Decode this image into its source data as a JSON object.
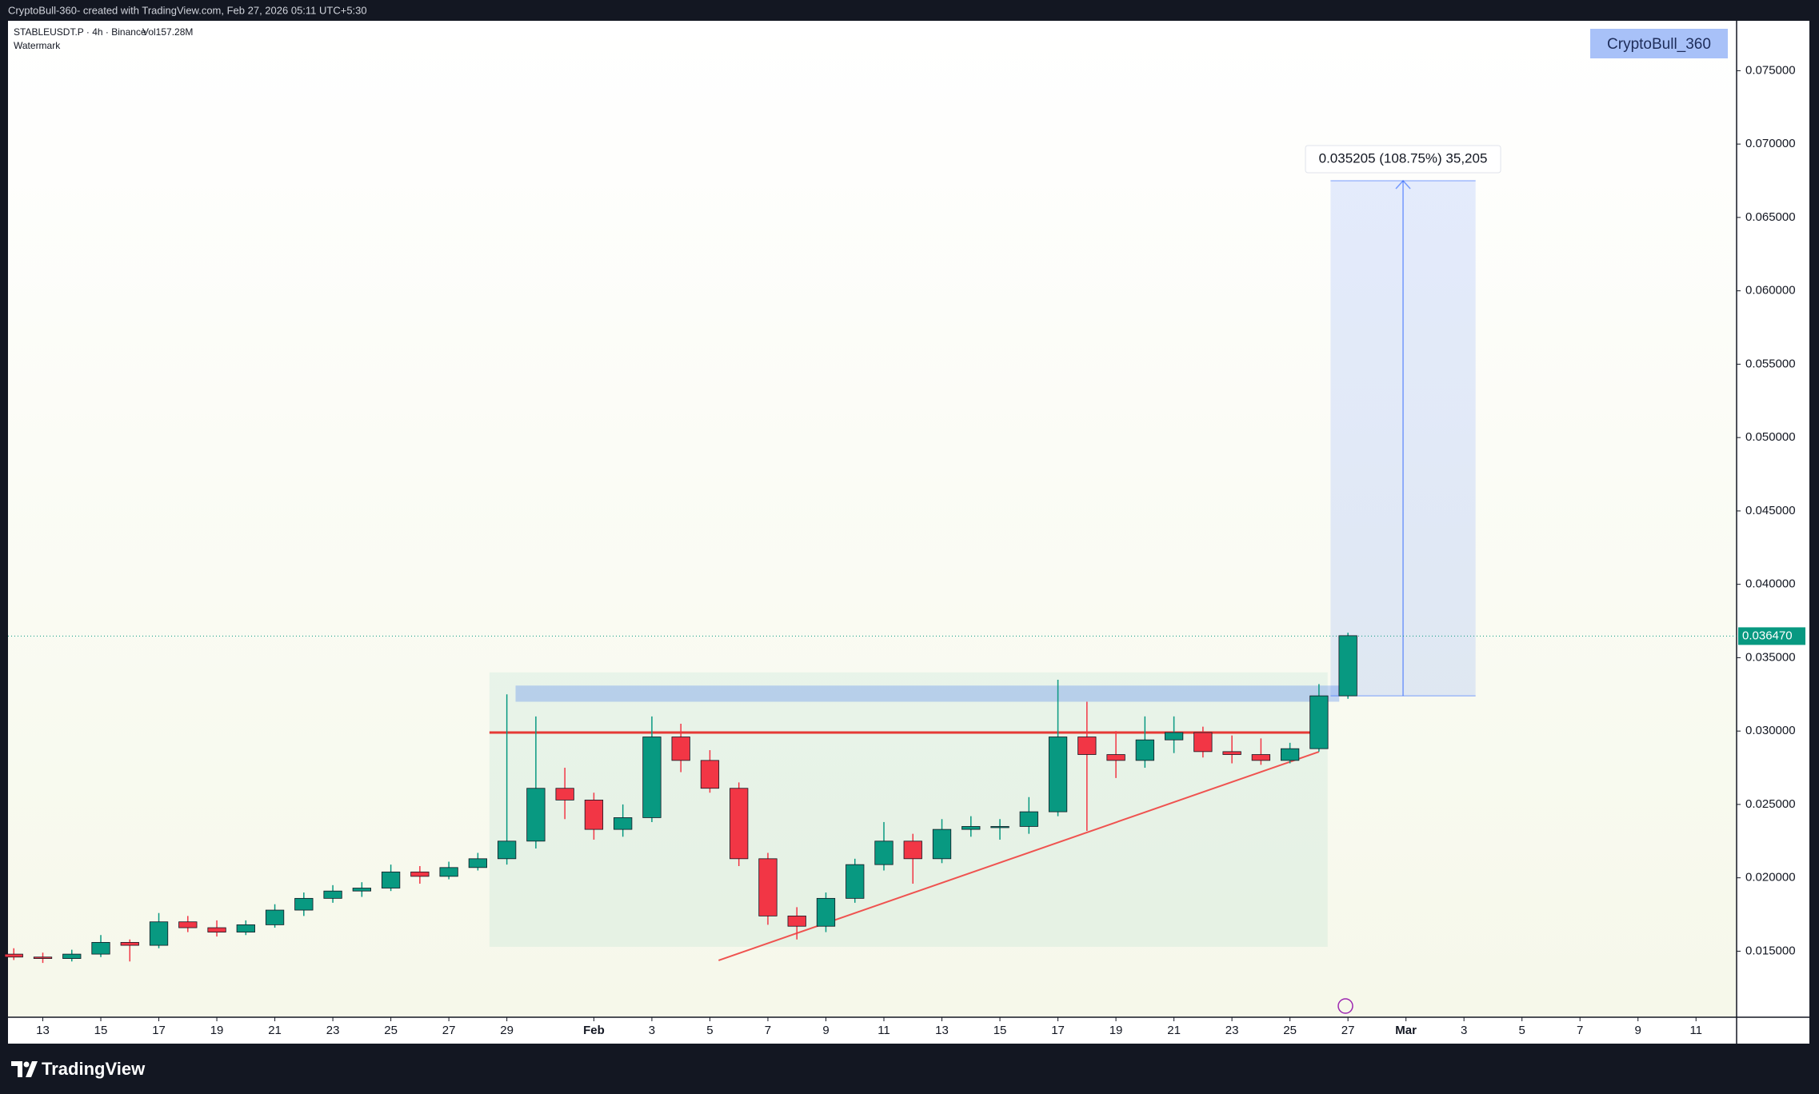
{
  "header": {
    "text": "CryptoBull-360- created with TradingView.com, Feb 27, 2026 05:11 UTC+5:30"
  },
  "legend": {
    "symbol": "STABLEUSDT.P · 4h · Binance",
    "volume": "Vol157.28M",
    "indicator": "Watermark"
  },
  "badge": "CryptoBull_360",
  "footer": {
    "brand": "TradingView"
  },
  "chart_data": {
    "type": "candlestick",
    "up_color": "#089981",
    "down_color": "#f23645",
    "xlim": [
      -1.2,
      58.4
    ],
    "ylim": [
      0.0105,
      0.0784
    ],
    "xticks": [
      {
        "value": 0,
        "label": "13"
      },
      {
        "value": 2,
        "label": "15"
      },
      {
        "value": 4,
        "label": "17"
      },
      {
        "value": 6,
        "label": "19"
      },
      {
        "value": 8,
        "label": "21"
      },
      {
        "value": 10,
        "label": "23"
      },
      {
        "value": 12,
        "label": "25"
      },
      {
        "value": 14,
        "label": "27"
      },
      {
        "value": 16,
        "label": "29"
      },
      {
        "value": 19,
        "label": "Feb"
      },
      {
        "value": 21,
        "label": "3"
      },
      {
        "value": 23,
        "label": "5"
      },
      {
        "value": 25,
        "label": "7"
      },
      {
        "value": 27,
        "label": "9"
      },
      {
        "value": 29,
        "label": "11"
      },
      {
        "value": 31,
        "label": "13"
      },
      {
        "value": 33,
        "label": "15"
      },
      {
        "value": 35,
        "label": "17"
      },
      {
        "value": 37,
        "label": "19"
      },
      {
        "value": 39,
        "label": "21"
      },
      {
        "value": 41,
        "label": "23"
      },
      {
        "value": 43,
        "label": "25"
      },
      {
        "value": 45,
        "label": "27"
      },
      {
        "value": 47,
        "label": "Mar"
      },
      {
        "value": 49,
        "label": "3"
      },
      {
        "value": 51,
        "label": "5"
      },
      {
        "value": 53,
        "label": "7"
      },
      {
        "value": 55,
        "label": "9"
      },
      {
        "value": 57,
        "label": "11"
      }
    ],
    "yticks": [
      {
        "value": 0.015,
        "label": "0.015000"
      },
      {
        "value": 0.02,
        "label": "0.020000"
      },
      {
        "value": 0.025,
        "label": "0.025000"
      },
      {
        "value": 0.03,
        "label": "0.030000"
      },
      {
        "value": 0.035,
        "label": "0.035000"
      },
      {
        "value": 0.04,
        "label": "0.040000"
      },
      {
        "value": 0.045,
        "label": "0.045000"
      },
      {
        "value": 0.05,
        "label": "0.050000"
      },
      {
        "value": 0.055,
        "label": "0.055000"
      },
      {
        "value": 0.06,
        "label": "0.060000"
      },
      {
        "value": 0.065,
        "label": "0.065000"
      },
      {
        "value": 0.07,
        "label": "0.070000"
      },
      {
        "value": 0.075,
        "label": "0.075000"
      }
    ],
    "x": [
      -1,
      0,
      1,
      2,
      3,
      4,
      5,
      6,
      7,
      8,
      9,
      10,
      11,
      12,
      13,
      14,
      15,
      16,
      17,
      18,
      19,
      20,
      21,
      22,
      23,
      24,
      25,
      26,
      27,
      28,
      29,
      30,
      31,
      32,
      33,
      34,
      35,
      36,
      37,
      38,
      39,
      40,
      41,
      42,
      43,
      44,
      45
    ],
    "ohlc": [
      [
        0.0148,
        0.0152,
        0.0144,
        0.0146
      ],
      [
        0.0146,
        0.0149,
        0.0142,
        0.0145
      ],
      [
        0.0145,
        0.0151,
        0.0143,
        0.0148
      ],
      [
        0.0148,
        0.0161,
        0.0146,
        0.0156
      ],
      [
        0.0156,
        0.0158,
        0.0143,
        0.0154
      ],
      [
        0.0154,
        0.0176,
        0.0152,
        0.017
      ],
      [
        0.017,
        0.0174,
        0.0163,
        0.0166
      ],
      [
        0.0166,
        0.0171,
        0.016,
        0.0163
      ],
      [
        0.0163,
        0.0171,
        0.0161,
        0.0168
      ],
      [
        0.0168,
        0.0182,
        0.0166,
        0.0178
      ],
      [
        0.0178,
        0.019,
        0.0174,
        0.0186
      ],
      [
        0.0186,
        0.0195,
        0.0183,
        0.0191
      ],
      [
        0.0191,
        0.0197,
        0.0187,
        0.0193
      ],
      [
        0.0193,
        0.0209,
        0.0191,
        0.0204
      ],
      [
        0.0204,
        0.0208,
        0.0196,
        0.0201
      ],
      [
        0.0201,
        0.0211,
        0.0199,
        0.0207
      ],
      [
        0.0207,
        0.0217,
        0.0205,
        0.0213
      ],
      [
        0.0213,
        0.0325,
        0.0209,
        0.0225
      ],
      [
        0.0225,
        0.031,
        0.022,
        0.0261
      ],
      [
        0.0261,
        0.0275,
        0.024,
        0.0253
      ],
      [
        0.0253,
        0.0258,
        0.0226,
        0.0233
      ],
      [
        0.0233,
        0.025,
        0.0228,
        0.0241
      ],
      [
        0.0241,
        0.031,
        0.0238,
        0.0296
      ],
      [
        0.0296,
        0.0305,
        0.0272,
        0.028
      ],
      [
        0.028,
        0.0287,
        0.0258,
        0.0261
      ],
      [
        0.0261,
        0.0265,
        0.0208,
        0.0213
      ],
      [
        0.0213,
        0.0217,
        0.0168,
        0.0174
      ],
      [
        0.0174,
        0.018,
        0.0158,
        0.0167
      ],
      [
        0.0167,
        0.019,
        0.0163,
        0.0186
      ],
      [
        0.0186,
        0.0213,
        0.0183,
        0.0209
      ],
      [
        0.0209,
        0.0238,
        0.0205,
        0.0225
      ],
      [
        0.0225,
        0.023,
        0.0196,
        0.0213
      ],
      [
        0.0213,
        0.024,
        0.021,
        0.0233
      ],
      [
        0.0233,
        0.0242,
        0.0228,
        0.0235
      ],
      [
        0.0235,
        0.024,
        0.0226,
        0.0235
      ],
      [
        0.0235,
        0.0255,
        0.023,
        0.0245
      ],
      [
        0.0245,
        0.0335,
        0.0242,
        0.0296
      ],
      [
        0.0296,
        0.032,
        0.0232,
        0.0284
      ],
      [
        0.0284,
        0.03,
        0.0268,
        0.028
      ],
      [
        0.028,
        0.031,
        0.0275,
        0.0294
      ],
      [
        0.0294,
        0.031,
        0.0285,
        0.0299
      ],
      [
        0.0299,
        0.0303,
        0.0282,
        0.0286
      ],
      [
        0.0286,
        0.0297,
        0.0278,
        0.0284
      ],
      [
        0.0284,
        0.0295,
        0.0277,
        0.028
      ],
      [
        0.028,
        0.0292,
        0.0278,
        0.0288
      ],
      [
        0.0288,
        0.0332,
        0.0286,
        0.0324
      ],
      [
        0.0324,
        0.0367,
        0.0322,
        0.0365
      ]
    ],
    "last_price": {
      "value": 0.03647,
      "label": "0.036470"
    },
    "value_area": {
      "x": [
        15.4,
        44.3
      ],
      "y": [
        0.0153,
        0.034
      ]
    },
    "zone": {
      "x": [
        16.3,
        44.7
      ],
      "y": [
        0.032,
        0.0331
      ]
    },
    "resistance": {
      "x": [
        15.4,
        44.3
      ],
      "y": 0.0299
    },
    "trendline": {
      "x": [
        23.3,
        44.0
      ],
      "y": [
        0.01437,
        0.02859
      ]
    },
    "measure": {
      "x": [
        44.4,
        49.4
      ],
      "y": [
        0.0324,
        0.0675
      ],
      "label": "0.035205 (108.75%) 35,205"
    }
  }
}
